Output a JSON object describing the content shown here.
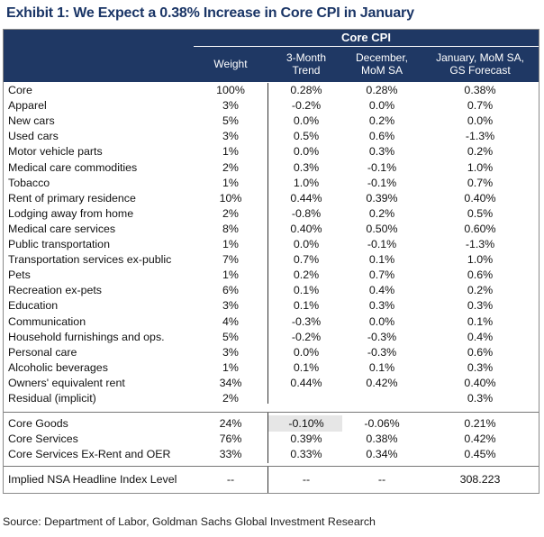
{
  "title": "Exhibit 1: We Expect a 0.38% Increase in Core CPI in January",
  "header": {
    "group_label": "Core CPI",
    "col_weight": "Weight",
    "col_trend_1": "3-Month",
    "col_trend_2": "Trend",
    "col_dec_1": "December,",
    "col_dec_2": "MoM SA",
    "col_gs_1": "January, MoM SA,",
    "col_gs_2": "GS Forecast"
  },
  "rows": [
    {
      "name": "Core",
      "weight": "100%",
      "trend": "0.28%",
      "dec": "0.28%",
      "gs": "0.38%"
    },
    {
      "name": "Apparel",
      "weight": "3%",
      "trend": "-0.2%",
      "dec": "0.0%",
      "gs": "0.7%"
    },
    {
      "name": "New cars",
      "weight": "5%",
      "trend": "0.0%",
      "dec": "0.2%",
      "gs": "0.0%"
    },
    {
      "name": "Used cars",
      "weight": "3%",
      "trend": "0.5%",
      "dec": "0.6%",
      "gs": "-1.3%"
    },
    {
      "name": "Motor vehicle parts",
      "weight": "1%",
      "trend": "0.0%",
      "dec": "0.3%",
      "gs": "0.2%"
    },
    {
      "name": "Medical care commodities",
      "weight": "2%",
      "trend": "0.3%",
      "dec": "-0.1%",
      "gs": "1.0%"
    },
    {
      "name": "Tobacco",
      "weight": "1%",
      "trend": "1.0%",
      "dec": "-0.1%",
      "gs": "0.7%"
    },
    {
      "name": "Rent of primary residence",
      "weight": "10%",
      "trend": "0.44%",
      "dec": "0.39%",
      "gs": "0.40%"
    },
    {
      "name": "Lodging away from home",
      "weight": "2%",
      "trend": "-0.8%",
      "dec": "0.2%",
      "gs": "0.5%"
    },
    {
      "name": "Medical care services",
      "weight": "8%",
      "trend": "0.40%",
      "dec": "0.50%",
      "gs": "0.60%"
    },
    {
      "name": "Public transportation",
      "weight": "1%",
      "trend": "0.0%",
      "dec": "-0.1%",
      "gs": "-1.3%"
    },
    {
      "name": "Transportation services ex-public",
      "weight": "7%",
      "trend": "0.7%",
      "dec": "0.1%",
      "gs": "1.0%"
    },
    {
      "name": "Pets",
      "weight": "1%",
      "trend": "0.2%",
      "dec": "0.7%",
      "gs": "0.6%"
    },
    {
      "name": "Recreation ex-pets",
      "weight": "6%",
      "trend": "0.1%",
      "dec": "0.4%",
      "gs": "0.2%"
    },
    {
      "name": "Education",
      "weight": "3%",
      "trend": "0.1%",
      "dec": "0.3%",
      "gs": "0.3%"
    },
    {
      "name": "Communication",
      "weight": "4%",
      "trend": "-0.3%",
      "dec": "0.0%",
      "gs": "0.1%"
    },
    {
      "name": "Household furnishings and ops.",
      "weight": "5%",
      "trend": "-0.2%",
      "dec": "-0.3%",
      "gs": "0.4%"
    },
    {
      "name": "Personal care",
      "weight": "3%",
      "trend": "0.0%",
      "dec": "-0.3%",
      "gs": "0.6%"
    },
    {
      "name": "Alcoholic beverages",
      "weight": "1%",
      "trend": "0.1%",
      "dec": "0.1%",
      "gs": "0.3%"
    },
    {
      "name": "Owners' equivalent rent",
      "weight": "34%",
      "trend": "0.44%",
      "dec": "0.42%",
      "gs": "0.40%"
    },
    {
      "name": "Residual (implicit)",
      "weight": "2%",
      "trend": "",
      "dec": "",
      "gs": "0.3%"
    }
  ],
  "summary_rows": [
    {
      "name": "Core Goods",
      "weight": "24%",
      "trend": "-0.10%",
      "dec": "-0.06%",
      "gs": "0.21%"
    },
    {
      "name": "Core Services",
      "weight": "76%",
      "trend": "0.39%",
      "dec": "0.38%",
      "gs": "0.42%"
    },
    {
      "name": "Core Services Ex-Rent and OER",
      "weight": "33%",
      "trend": "0.33%",
      "dec": "0.34%",
      "gs": "0.45%"
    }
  ],
  "implied_row": {
    "name": "Implied NSA Headline Index Level",
    "weight": "--",
    "trend": "--",
    "dec": "--",
    "gs": "308.223"
  },
  "source": "Source: Department of Labor, Goldman Sachs Global Investment Research"
}
